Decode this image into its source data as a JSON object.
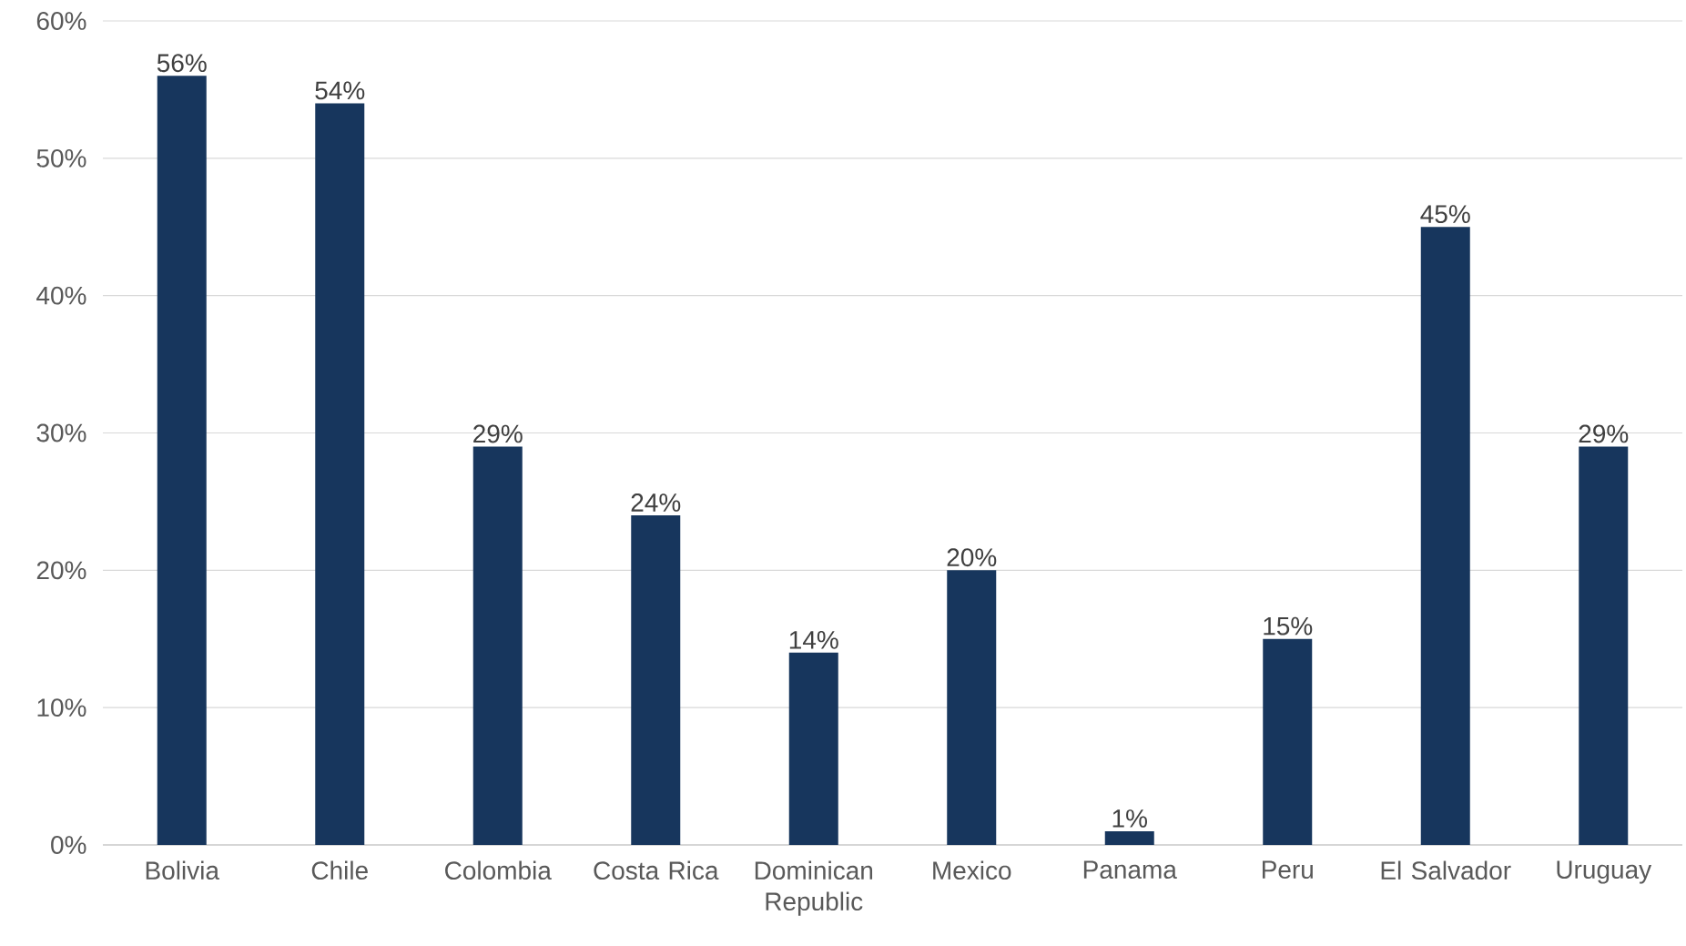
{
  "chart_data": {
    "type": "bar",
    "categories": [
      "Bolivia",
      "Chile",
      "Colombia",
      "Costa Rica",
      "Dominican Republic",
      "Mexico",
      "Panama",
      "Peru",
      "El Salvador",
      "Uruguay"
    ],
    "values": [
      56,
      54,
      29,
      24,
      14,
      20,
      1,
      15,
      45,
      29
    ],
    "value_labels": [
      "56%",
      "54%",
      "29%",
      "24%",
      "14%",
      "20%",
      "1%",
      "15%",
      "45%",
      "29%"
    ],
    "color": "#17365d",
    "ylim": [
      0,
      60
    ],
    "yticks": [
      {
        "value": 0,
        "label": "0%"
      },
      {
        "value": 10,
        "label": "10%"
      },
      {
        "value": 20,
        "label": "20%"
      },
      {
        "value": 30,
        "label": "30%"
      },
      {
        "value": 40,
        "label": "40%"
      },
      {
        "value": 50,
        "label": "50%"
      },
      {
        "value": 60,
        "label": "60%"
      }
    ],
    "grid": "y"
  }
}
